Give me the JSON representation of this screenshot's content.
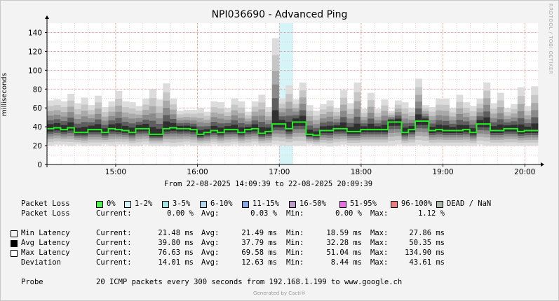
{
  "title": "NPI036690 - Advanced Ping",
  "ylabel": "milliseconds",
  "side_label": "RRDTOOL / TOBI OETIKER",
  "date_range": "From 22-08-2025 14:09:39 to 22-08-2025 20:09:39",
  "chart_data": {
    "type": "area",
    "title": "NPI036690 - Advanced Ping",
    "ylabel": "milliseconds",
    "ylim": [
      0,
      150
    ],
    "yticks": [
      0,
      20,
      40,
      60,
      80,
      100,
      120,
      140
    ],
    "xticks": [
      "15:00",
      "16:00",
      "17:00",
      "18:00",
      "19:00",
      "20:00"
    ],
    "xstart": "14:09:39",
    "xend": "20:09:39",
    "grid": true,
    "packet_loss_band": {
      "from": "17:00",
      "to": "17:10",
      "color": "#d4f4f7"
    },
    "min_latency": [
      20,
      21,
      21,
      20,
      21,
      20,
      20,
      20,
      21,
      20,
      21,
      21,
      20,
      20,
      21,
      20,
      20,
      20,
      19,
      20,
      21,
      20,
      20,
      20,
      21,
      20,
      20,
      21,
      20,
      20,
      21,
      20,
      20,
      21,
      20,
      20,
      20,
      20,
      21,
      20,
      20,
      19,
      20,
      21,
      20,
      20,
      20,
      20,
      20,
      20,
      20,
      21,
      20,
      20,
      21,
      20,
      20,
      20,
      20,
      20,
      20,
      20,
      20,
      21,
      20,
      20,
      20,
      20,
      20,
      20,
      20,
      20
    ],
    "avg_latency": [
      38,
      39,
      37,
      39,
      34,
      34,
      37,
      37,
      34,
      38,
      37,
      36,
      34,
      38,
      38,
      32,
      32,
      38,
      39,
      38,
      38,
      37,
      32,
      34,
      36,
      34,
      37,
      37,
      34,
      37,
      38,
      33,
      35,
      43,
      43,
      38,
      45,
      45,
      32,
      31,
      36,
      36,
      38,
      38,
      35,
      35,
      37,
      37,
      37,
      37,
      45,
      45,
      34,
      37,
      46,
      46,
      36,
      37,
      36,
      36,
      36,
      37,
      34,
      43,
      43,
      36,
      36,
      38,
      38,
      35,
      36,
      36
    ],
    "max_latency": [
      68,
      69,
      67,
      75,
      65,
      71,
      63,
      73,
      61,
      67,
      78,
      67,
      66,
      62,
      70,
      80,
      69,
      86,
      70,
      57,
      58,
      58,
      60,
      56,
      67,
      66,
      60,
      70,
      67,
      56,
      67,
      74,
      61,
      134,
      70,
      84,
      69,
      87,
      63,
      57,
      64,
      68,
      60,
      79,
      65,
      87,
      59,
      76,
      59,
      69,
      57,
      68,
      66,
      60,
      91,
      63,
      61,
      70,
      70,
      60,
      74,
      66,
      62,
      70,
      87,
      65,
      76,
      60,
      64,
      82,
      62,
      83
    ]
  },
  "legend": {
    "packet_loss_label": "Packet Loss",
    "loss_buckets": [
      {
        "label": "0%",
        "color": "#55ee55"
      },
      {
        "label": "1-2%",
        "color": "#d6f3f6"
      },
      {
        "label": "3-5%",
        "color": "#a8e2e4"
      },
      {
        "label": "6-10%",
        "color": "#b2d6ee"
      },
      {
        "label": "11-15%",
        "color": "#8aa9e2"
      },
      {
        "label": "16-50%",
        "color": "#bf9bcb"
      },
      {
        "label": "51-95%",
        "color": "#e96ee6"
      },
      {
        "label": "96-100%",
        "color": "#ea7f7f"
      },
      {
        "label": "DEAD / NaN",
        "color": "#a9b8a8"
      }
    ]
  },
  "stats": [
    {
      "label": "Packet Loss",
      "swatch": "",
      "current": "0.00 %",
      "avg": "0.03 %",
      "min": "0.00 %",
      "max": "1.12 %"
    },
    {
      "label": "Min Latency",
      "swatch": "#f3f3f3",
      "current": "21.48 ms",
      "avg": "21.49 ms",
      "min": "18.59 ms",
      "max": "27.86 ms"
    },
    {
      "label": "Avg Latency",
      "swatch": "#000000",
      "current": "39.80 ms",
      "avg": "37.79 ms",
      "min": "32.28 ms",
      "max": "50.35 ms"
    },
    {
      "label": "Max Latency",
      "swatch": "#ffffff",
      "current": "76.63 ms",
      "avg": "69.58 ms",
      "min": "51.04 ms",
      "max": "134.90 ms"
    },
    {
      "label": "Deviation",
      "swatch": "",
      "current": "14.01 ms",
      "avg": "12.63 ms",
      "min": "8.44 ms",
      "max": "43.61 ms"
    }
  ],
  "stat_headers": {
    "current": "Current:",
    "avg": "Avg:",
    "min": "Min:",
    "max": "Max:"
  },
  "probe": {
    "label": "Probe",
    "text": "20 ICMP packets every 300 seconds from 192.168.1.199 to www.google.ch"
  },
  "footer": "Generated by Cacti®"
}
